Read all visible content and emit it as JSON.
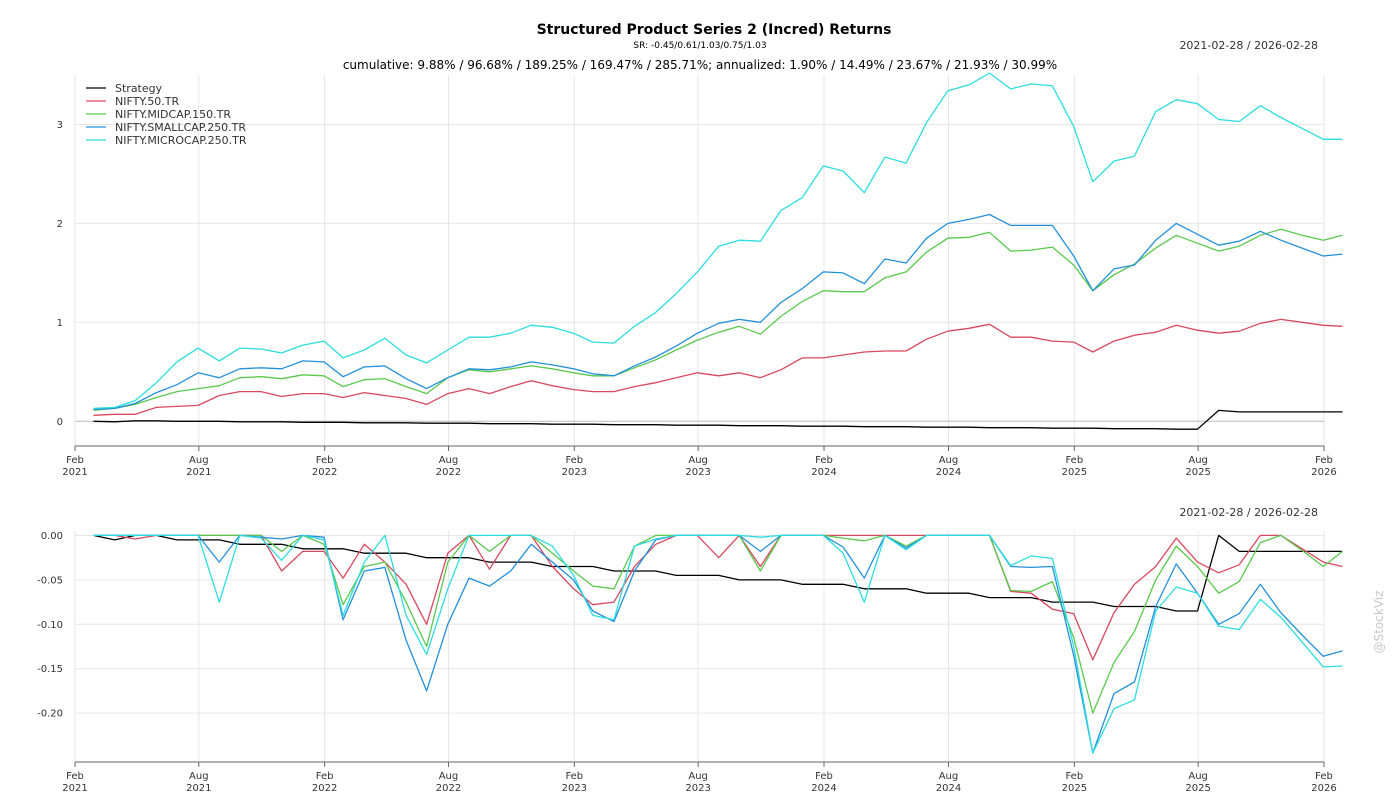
{
  "chart_data": [
    {
      "type": "line",
      "title": "Structured Product Series 2 (Incred) Returns",
      "subtitle": "SR: -0.45/0.61/1.03/0.75/1.03",
      "summary": "cumulative: 9.88% / 96.68% / 189.25% / 169.47% / 285.71%; annualized: 1.90% / 14.49% / 23.67% / 21.93% / 30.99%",
      "date_range": "2021-02-28 / 2026-02-28",
      "x_ticks": [
        {
          "date": "2021-02-01",
          "month": "Feb",
          "year": "2021"
        },
        {
          "date": "2021-08-01",
          "month": "Aug",
          "year": "2021"
        },
        {
          "date": "2022-02-01",
          "month": "Feb",
          "year": "2022"
        },
        {
          "date": "2022-08-01",
          "month": "Aug",
          "year": "2022"
        },
        {
          "date": "2023-02-01",
          "month": "Feb",
          "year": "2023"
        },
        {
          "date": "2023-08-01",
          "month": "Aug",
          "year": "2023"
        },
        {
          "date": "2024-02-01",
          "month": "Feb",
          "year": "2024"
        },
        {
          "date": "2024-08-01",
          "month": "Aug",
          "year": "2024"
        },
        {
          "date": "2025-02-01",
          "month": "Feb",
          "year": "2025"
        },
        {
          "date": "2025-08-01",
          "month": "Aug",
          "year": "2025"
        },
        {
          "date": "2026-02-01",
          "month": "Feb",
          "year": "2026"
        }
      ],
      "y_ticks": [
        "0",
        "1",
        "2",
        "3"
      ],
      "ylim": [
        -0.25,
        3.5
      ],
      "grid": true,
      "legend_position": "top-left",
      "x": [
        "2021-02-28",
        "2021-03-31",
        "2021-04-30",
        "2021-05-31",
        "2021-06-30",
        "2021-07-31",
        "2021-08-31",
        "2021-09-30",
        "2021-10-31",
        "2021-11-30",
        "2021-12-31",
        "2022-01-31",
        "2022-02-28",
        "2022-03-31",
        "2022-04-30",
        "2022-05-31",
        "2022-06-30",
        "2022-07-31",
        "2022-08-31",
        "2022-09-30",
        "2022-10-31",
        "2022-11-30",
        "2022-12-31",
        "2023-01-31",
        "2023-02-28",
        "2023-03-31",
        "2023-04-30",
        "2023-05-31",
        "2023-06-30",
        "2023-07-31",
        "2023-08-31",
        "2023-09-30",
        "2023-10-31",
        "2023-11-30",
        "2023-12-31",
        "2024-01-31",
        "2024-02-29",
        "2024-03-31",
        "2024-04-30",
        "2024-05-31",
        "2024-06-30",
        "2024-07-31",
        "2024-08-31",
        "2024-09-30",
        "2024-10-31",
        "2024-11-30",
        "2024-12-31",
        "2025-01-31",
        "2025-02-28",
        "2025-03-31",
        "2025-04-30",
        "2025-05-31",
        "2025-06-30",
        "2025-07-31",
        "2025-08-31",
        "2025-09-30",
        "2025-10-31",
        "2025-11-30",
        "2025-12-31",
        "2026-01-31",
        "2026-02-28"
      ],
      "series": [
        {
          "name": "Strategy",
          "color": "#000000",
          "values": [
            0.0,
            -0.005,
            0.005,
            0.005,
            0.0,
            0.0,
            0.0,
            -0.005,
            -0.005,
            -0.005,
            -0.01,
            -0.01,
            -0.01,
            -0.015,
            -0.015,
            -0.015,
            -0.02,
            -0.02,
            -0.02,
            -0.025,
            -0.025,
            -0.025,
            -0.03,
            -0.03,
            -0.03,
            -0.035,
            -0.035,
            -0.035,
            -0.04,
            -0.04,
            -0.04,
            -0.045,
            -0.045,
            -0.045,
            -0.05,
            -0.05,
            -0.05,
            -0.055,
            -0.055,
            -0.055,
            -0.06,
            -0.06,
            -0.06,
            -0.065,
            -0.065,
            -0.065,
            -0.07,
            -0.07,
            -0.07,
            -0.075,
            -0.075,
            -0.075,
            -0.08,
            -0.08,
            0.11,
            0.095,
            0.095,
            0.095,
            0.095,
            0.095,
            0.095
          ]
        },
        {
          "name": "NIFTY.50.TR",
          "color": "#d9485f",
          "values": [
            0.06,
            0.07,
            0.07,
            0.14,
            0.15,
            0.16,
            0.26,
            0.3,
            0.3,
            0.25,
            0.28,
            0.28,
            0.24,
            0.29,
            0.26,
            0.23,
            0.17,
            0.28,
            0.33,
            0.28,
            0.35,
            0.41,
            0.36,
            0.32,
            0.3,
            0.3,
            0.35,
            0.39,
            0.44,
            0.49,
            0.46,
            0.49,
            0.44,
            0.52,
            0.64,
            0.64,
            0.67,
            0.7,
            0.71,
            0.71,
            0.83,
            0.91,
            0.94,
            0.98,
            0.85,
            0.85,
            0.81,
            0.8,
            0.7,
            0.81,
            0.87,
            0.9,
            0.97,
            0.92,
            0.89,
            0.91,
            0.99,
            1.03,
            1.0,
            0.97,
            0.96
          ]
        },
        {
          "name": "NIFTY.MIDCAP.150.TR",
          "color": "#5ac84e",
          "values": [
            0.11,
            0.13,
            0.17,
            0.24,
            0.3,
            0.33,
            0.36,
            0.44,
            0.45,
            0.43,
            0.47,
            0.46,
            0.35,
            0.42,
            0.43,
            0.35,
            0.28,
            0.44,
            0.52,
            0.5,
            0.53,
            0.56,
            0.53,
            0.49,
            0.46,
            0.46,
            0.54,
            0.62,
            0.72,
            0.82,
            0.9,
            0.96,
            0.88,
            1.06,
            1.21,
            1.32,
            1.31,
            1.31,
            1.45,
            1.51,
            1.71,
            1.85,
            1.86,
            1.91,
            1.72,
            1.73,
            1.76,
            1.58,
            1.32,
            1.48,
            1.59,
            1.75,
            1.88,
            1.8,
            1.72,
            1.77,
            1.88,
            1.94,
            1.88,
            1.83,
            1.88
          ]
        },
        {
          "name": "NIFTY.SMALLCAP.250.TR",
          "color": "#2390dd",
          "values": [
            0.12,
            0.13,
            0.18,
            0.29,
            0.37,
            0.49,
            0.44,
            0.53,
            0.54,
            0.53,
            0.61,
            0.6,
            0.45,
            0.55,
            0.56,
            0.43,
            0.33,
            0.44,
            0.53,
            0.52,
            0.55,
            0.6,
            0.57,
            0.53,
            0.48,
            0.46,
            0.56,
            0.65,
            0.76,
            0.89,
            0.99,
            1.03,
            1.0,
            1.2,
            1.34,
            1.51,
            1.5,
            1.39,
            1.64,
            1.6,
            1.85,
            2.0,
            2.04,
            2.09,
            1.98,
            1.98,
            1.98,
            1.67,
            1.32,
            1.54,
            1.58,
            1.83,
            2.0,
            1.89,
            1.78,
            1.82,
            1.92,
            1.83,
            1.75,
            1.67,
            1.69
          ]
        },
        {
          "name": "NIFTY.MICROCAP.250.TR",
          "color": "#2ddcdf",
          "values": [
            0.13,
            0.14,
            0.21,
            0.39,
            0.6,
            0.74,
            0.61,
            0.74,
            0.73,
            0.69,
            0.77,
            0.81,
            0.64,
            0.72,
            0.84,
            0.67,
            0.59,
            0.72,
            0.85,
            0.85,
            0.89,
            0.97,
            0.95,
            0.89,
            0.8,
            0.79,
            0.96,
            1.1,
            1.29,
            1.51,
            1.77,
            1.83,
            1.82,
            2.13,
            2.26,
            2.58,
            2.53,
            2.31,
            2.67,
            2.61,
            3.02,
            3.34,
            3.4,
            3.52,
            3.36,
            3.41,
            3.39,
            2.98,
            2.42,
            2.63,
            2.68,
            3.13,
            3.25,
            3.21,
            3.05,
            3.03,
            3.19,
            3.07,
            2.96,
            2.85,
            2.85
          ]
        }
      ]
    },
    {
      "type": "line",
      "date_range": "2021-02-28 / 2026-02-28",
      "y_ticks": [
        "0.00",
        "-0.05",
        "-0.10",
        "-0.15",
        "-0.20"
      ],
      "ylim": [
        -0.255,
        0.005
      ],
      "grid": true,
      "series": [
        {
          "color": "#000000",
          "values": [
            0.0,
            -0.005,
            0.0,
            0.0,
            -0.005,
            -0.005,
            -0.005,
            -0.01,
            -0.01,
            -0.01,
            -0.015,
            -0.015,
            -0.015,
            -0.02,
            -0.02,
            -0.02,
            -0.025,
            -0.025,
            -0.025,
            -0.03,
            -0.03,
            -0.03,
            -0.035,
            -0.035,
            -0.035,
            -0.04,
            -0.04,
            -0.04,
            -0.045,
            -0.045,
            -0.045,
            -0.05,
            -0.05,
            -0.05,
            -0.055,
            -0.055,
            -0.055,
            -0.06,
            -0.06,
            -0.06,
            -0.065,
            -0.065,
            -0.065,
            -0.07,
            -0.07,
            -0.07,
            -0.075,
            -0.075,
            -0.075,
            -0.08,
            -0.08,
            -0.08,
            -0.085,
            -0.085,
            0.0,
            -0.018,
            -0.018,
            -0.018,
            -0.018,
            -0.018,
            -0.018
          ]
        },
        {
          "color": "#d9485f",
          "values": [
            0.0,
            0.0,
            -0.004,
            0.0,
            0.0,
            0.0,
            0.0,
            0.0,
            0.0,
            -0.04,
            -0.018,
            -0.018,
            -0.048,
            -0.01,
            -0.03,
            -0.055,
            -0.1,
            -0.02,
            0.0,
            -0.038,
            0.0,
            0.0,
            -0.035,
            -0.06,
            -0.078,
            -0.075,
            -0.035,
            -0.01,
            0.0,
            0.0,
            -0.025,
            0.0,
            -0.035,
            0.0,
            0.0,
            0.0,
            0.0,
            0.0,
            0.0,
            0.0,
            0.0,
            0.0,
            0.0,
            0.0,
            -0.063,
            -0.065,
            -0.083,
            -0.088,
            -0.14,
            -0.087,
            -0.055,
            -0.035,
            -0.003,
            -0.03,
            -0.042,
            -0.033,
            0.0,
            0.0,
            -0.015,
            -0.03,
            -0.035
          ]
        },
        {
          "color": "#5ac84e",
          "values": [
            0.0,
            0.0,
            0.0,
            0.0,
            0.0,
            0.0,
            0.0,
            0.0,
            0.0,
            -0.018,
            0.0,
            -0.01,
            -0.078,
            -0.035,
            -0.03,
            -0.075,
            -0.125,
            -0.03,
            0.0,
            -0.018,
            0.0,
            0.0,
            -0.02,
            -0.04,
            -0.057,
            -0.06,
            -0.012,
            0.0,
            0.0,
            0.0,
            0.0,
            0.0,
            -0.04,
            0.0,
            0.0,
            0.0,
            -0.003,
            -0.006,
            0.0,
            -0.012,
            0.0,
            0.0,
            0.0,
            0.0,
            -0.062,
            -0.063,
            -0.052,
            -0.115,
            -0.2,
            -0.143,
            -0.108,
            -0.05,
            -0.012,
            -0.035,
            -0.065,
            -0.052,
            -0.008,
            0.0,
            -0.017,
            -0.035,
            -0.018
          ]
        },
        {
          "color": "#2390dd",
          "values": [
            0.0,
            0.0,
            0.0,
            0.0,
            0.0,
            0.0,
            -0.03,
            0.0,
            -0.002,
            -0.004,
            0.0,
            -0.002,
            -0.095,
            -0.04,
            -0.036,
            -0.118,
            -0.175,
            -0.1,
            -0.048,
            -0.057,
            -0.04,
            -0.01,
            -0.03,
            -0.05,
            -0.085,
            -0.097,
            -0.04,
            -0.005,
            0.0,
            0.0,
            0.0,
            0.0,
            -0.018,
            0.0,
            0.0,
            0.0,
            -0.013,
            -0.048,
            0.0,
            -0.014,
            0.0,
            0.0,
            0.0,
            0.0,
            -0.035,
            -0.036,
            -0.035,
            -0.135,
            -0.245,
            -0.178,
            -0.165,
            -0.08,
            -0.032,
            -0.065,
            -0.1,
            -0.088,
            -0.055,
            -0.087,
            -0.112,
            -0.136,
            -0.13
          ]
        },
        {
          "color": "#2ddcdf",
          "values": [
            0.0,
            0.0,
            0.0,
            0.0,
            0.0,
            0.0,
            -0.075,
            0.0,
            -0.003,
            -0.028,
            0.0,
            -0.005,
            -0.09,
            -0.03,
            0.0,
            -0.09,
            -0.134,
            -0.06,
            0.0,
            0.0,
            0.0,
            0.0,
            -0.012,
            -0.045,
            -0.09,
            -0.095,
            -0.012,
            -0.004,
            0.0,
            0.0,
            0.0,
            0.0,
            -0.002,
            0.0,
            0.0,
            0.0,
            -0.02,
            -0.075,
            0.0,
            -0.016,
            0.0,
            0.0,
            0.0,
            0.0,
            -0.034,
            -0.023,
            -0.026,
            -0.125,
            -0.245,
            -0.195,
            -0.185,
            -0.085,
            -0.058,
            -0.065,
            -0.102,
            -0.106,
            -0.072,
            -0.092,
            -0.12,
            -0.148,
            -0.147
          ]
        }
      ]
    }
  ],
  "watermark": "@StockViz"
}
